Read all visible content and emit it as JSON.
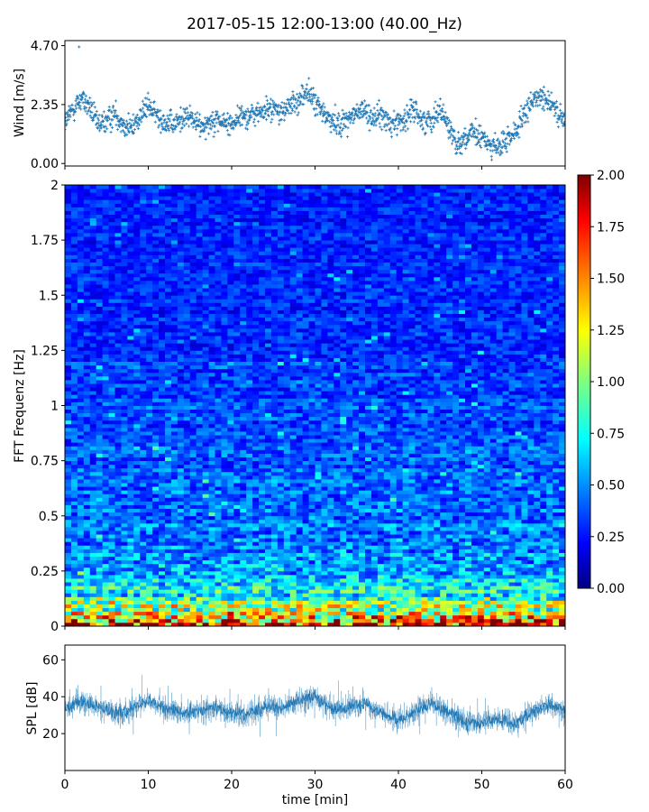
{
  "figure": {
    "title": "2017-05-15 12:00-13:00 (40.00_Hz)",
    "xlabel": "time [min]"
  },
  "chart_data": [
    {
      "type": "scatter",
      "name": "wind",
      "ylabel": "Wind [m/s]",
      "xlim": [
        0,
        60
      ],
      "ylim": [
        -0.1,
        4.9
      ],
      "yticks": [
        0.0,
        2.35,
        4.7
      ],
      "ytick_labels": [
        "0.00",
        "2.35",
        "4.70"
      ],
      "xticks": [
        0,
        10,
        20,
        30,
        40,
        50,
        60
      ],
      "marker": "+",
      "color": "#1f77b4",
      "trend": {
        "t": [
          0,
          1,
          2,
          3,
          4,
          5,
          6,
          7,
          8,
          9,
          10,
          11,
          12,
          13,
          14,
          15,
          16,
          17,
          18,
          19,
          20,
          21,
          22,
          23,
          24,
          25,
          26,
          27,
          28,
          29,
          30,
          31,
          32,
          33,
          34,
          35,
          36,
          37,
          38,
          39,
          40,
          41,
          42,
          43,
          44,
          45,
          46,
          47,
          48,
          49,
          50,
          51,
          52,
          53,
          54,
          55,
          56,
          57,
          58,
          59,
          60
        ],
        "v": [
          1.6,
          2.2,
          2.6,
          2.2,
          1.5,
          1.7,
          2.0,
          1.6,
          1.4,
          1.9,
          2.3,
          1.9,
          1.7,
          1.5,
          1.8,
          1.9,
          1.5,
          1.6,
          1.8,
          1.6,
          1.6,
          1.9,
          1.9,
          2.0,
          2.1,
          2.2,
          2.0,
          2.3,
          2.5,
          2.9,
          2.4,
          2.0,
          1.7,
          1.6,
          1.8,
          2.0,
          2.1,
          1.8,
          1.9,
          1.6,
          1.7,
          1.8,
          2.2,
          1.6,
          1.8,
          2.2,
          1.5,
          0.8,
          1.0,
          1.2,
          1.0,
          0.8,
          0.6,
          0.9,
          1.3,
          1.8,
          2.4,
          2.8,
          2.5,
          2.0,
          1.6
        ]
      },
      "peak_point": {
        "t": 1.7,
        "v": 4.65
      }
    },
    {
      "type": "heatmap",
      "name": "fft",
      "ylabel": "FFT Frequenz [Hz]",
      "xlim": [
        0,
        60
      ],
      "ylim": [
        0,
        2
      ],
      "yticks": [
        0,
        0.25,
        0.5,
        0.75,
        1,
        1.25,
        1.5,
        1.75,
        2
      ],
      "ytick_labels": [
        "0",
        "0.25",
        "0.5",
        "0.75",
        "1",
        "1.25",
        "1.5",
        "1.75",
        "2"
      ],
      "xticks": [
        0,
        10,
        20,
        30,
        40,
        50,
        60
      ],
      "colormap": "jet",
      "colorbar": {
        "range": [
          0.0,
          2.0
        ],
        "ticks": [
          0.0,
          0.25,
          0.5,
          0.75,
          1.0,
          1.25,
          1.5,
          1.75,
          2.0
        ],
        "tick_labels": [
          "0.00",
          "0.25",
          "0.50",
          "0.75",
          "1.00",
          "1.25",
          "1.50",
          "1.75",
          "2.00"
        ]
      },
      "intensity_profile": {
        "freq": [
          0,
          0.02,
          0.05,
          0.1,
          0.15,
          0.25,
          0.4,
          0.6,
          1.0,
          1.5,
          2.0
        ],
        "level": [
          2.0,
          1.75,
          1.3,
          0.95,
          0.75,
          0.6,
          0.5,
          0.45,
          0.38,
          0.32,
          0.3
        ]
      }
    },
    {
      "type": "line",
      "name": "spl",
      "ylabel": "SPL [dB]",
      "xlabel": "time [min]",
      "xlim": [
        0,
        60
      ],
      "ylim": [
        0,
        68
      ],
      "yticks": [
        20,
        40,
        60
      ],
      "ytick_labels": [
        "20",
        "40",
        "60"
      ],
      "xticks": [
        0,
        10,
        20,
        30,
        40,
        50,
        60
      ],
      "xtick_labels": [
        "0",
        "10",
        "20",
        "30",
        "40",
        "50",
        "60"
      ],
      "color": "#1f77b4",
      "trend": {
        "t": [
          0,
          2,
          4,
          6,
          8,
          10,
          12,
          14,
          16,
          18,
          20,
          22,
          24,
          26,
          28,
          30,
          32,
          34,
          36,
          38,
          40,
          42,
          44,
          46,
          48,
          50,
          52,
          54,
          56,
          58,
          60
        ],
        "v": [
          34,
          37,
          34,
          31,
          33,
          38,
          34,
          31,
          32,
          34,
          31,
          30,
          35,
          34,
          38,
          40,
          33,
          34,
          36,
          31,
          27,
          32,
          37,
          31,
          26,
          26,
          28,
          25,
          31,
          36,
          33
        ]
      }
    }
  ]
}
